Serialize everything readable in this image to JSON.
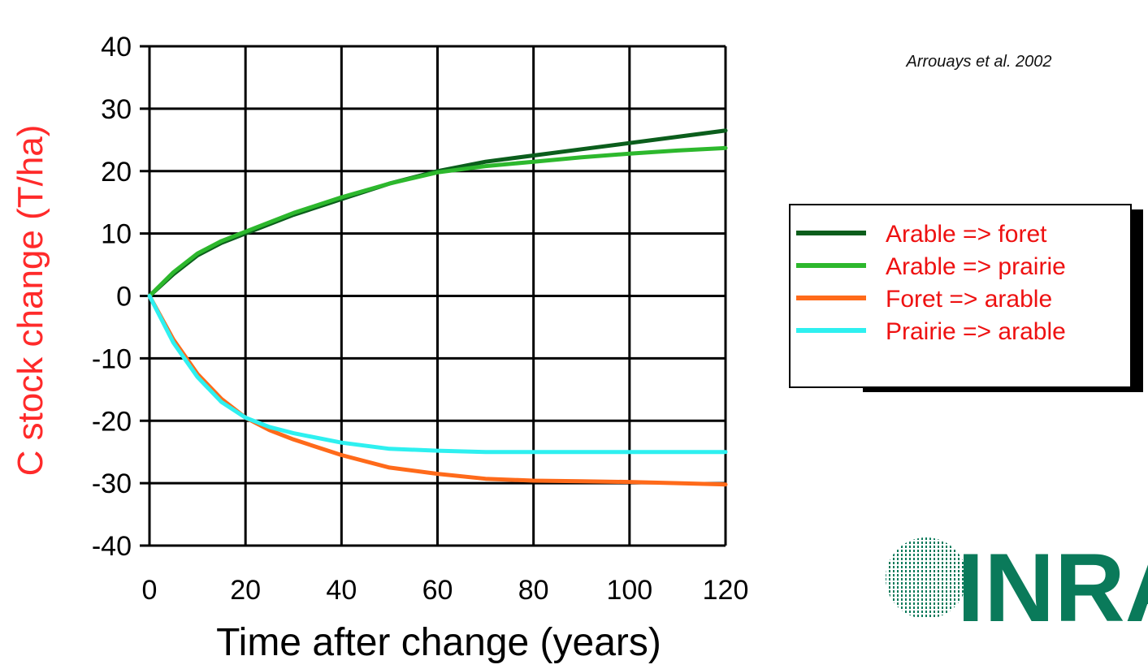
{
  "citation": "Arrouays et al. 2002",
  "logo_text": "INRA",
  "colors": {
    "axis_label": "#ff2a2a",
    "legend_text": "#ee1111",
    "logo_green": "#0a7a5a"
  },
  "chart_data": {
    "type": "line",
    "xlabel": "Time after change (years)",
    "ylabel": "C stock change (T/ha)",
    "xlim": [
      0,
      120
    ],
    "ylim": [
      -40,
      40
    ],
    "xticks": [
      0,
      20,
      40,
      60,
      80,
      100,
      120
    ],
    "yticks": [
      40,
      30,
      20,
      10,
      0,
      -10,
      -20,
      -30,
      -40
    ],
    "grid": true,
    "legend_position": "right",
    "series": [
      {
        "name": "Arable => foret",
        "color": "#0b5e1c",
        "x": [
          0,
          5,
          10,
          15,
          20,
          30,
          40,
          50,
          60,
          70,
          80,
          90,
          100,
          110,
          120
        ],
        "y": [
          0,
          3.5,
          6.5,
          8.5,
          10,
          13,
          15.5,
          18,
          20,
          21.5,
          22.5,
          23.5,
          24.5,
          25.5,
          26.5
        ]
      },
      {
        "name": "Arable => prairie",
        "color": "#2db82d",
        "x": [
          0,
          5,
          10,
          15,
          20,
          30,
          40,
          50,
          60,
          70,
          80,
          90,
          100,
          110,
          120
        ],
        "y": [
          0,
          3.8,
          6.8,
          8.8,
          10.3,
          13.3,
          15.8,
          18,
          19.8,
          20.8,
          21.5,
          22.2,
          22.8,
          23.3,
          23.7
        ]
      },
      {
        "name": "Foret => arable",
        "color": "#ff6a1a",
        "x": [
          0,
          5,
          10,
          15,
          20,
          25,
          30,
          40,
          50,
          60,
          70,
          80,
          90,
          100,
          110,
          120
        ],
        "y": [
          0,
          -7,
          -12.5,
          -16.5,
          -19.5,
          -21.5,
          -23,
          -25.5,
          -27.5,
          -28.5,
          -29.3,
          -29.6,
          -29.7,
          -29.8,
          -30,
          -30.2
        ]
      },
      {
        "name": "Prairie => arable",
        "color": "#2ef0f0",
        "x": [
          0,
          5,
          10,
          15,
          20,
          25,
          30,
          40,
          50,
          60,
          70,
          80,
          90,
          100,
          110,
          120
        ],
        "y": [
          0,
          -7.5,
          -13,
          -17,
          -19.5,
          -21,
          -22,
          -23.5,
          -24.5,
          -24.8,
          -25,
          -25,
          -25,
          -25,
          -25,
          -25
        ]
      }
    ]
  }
}
